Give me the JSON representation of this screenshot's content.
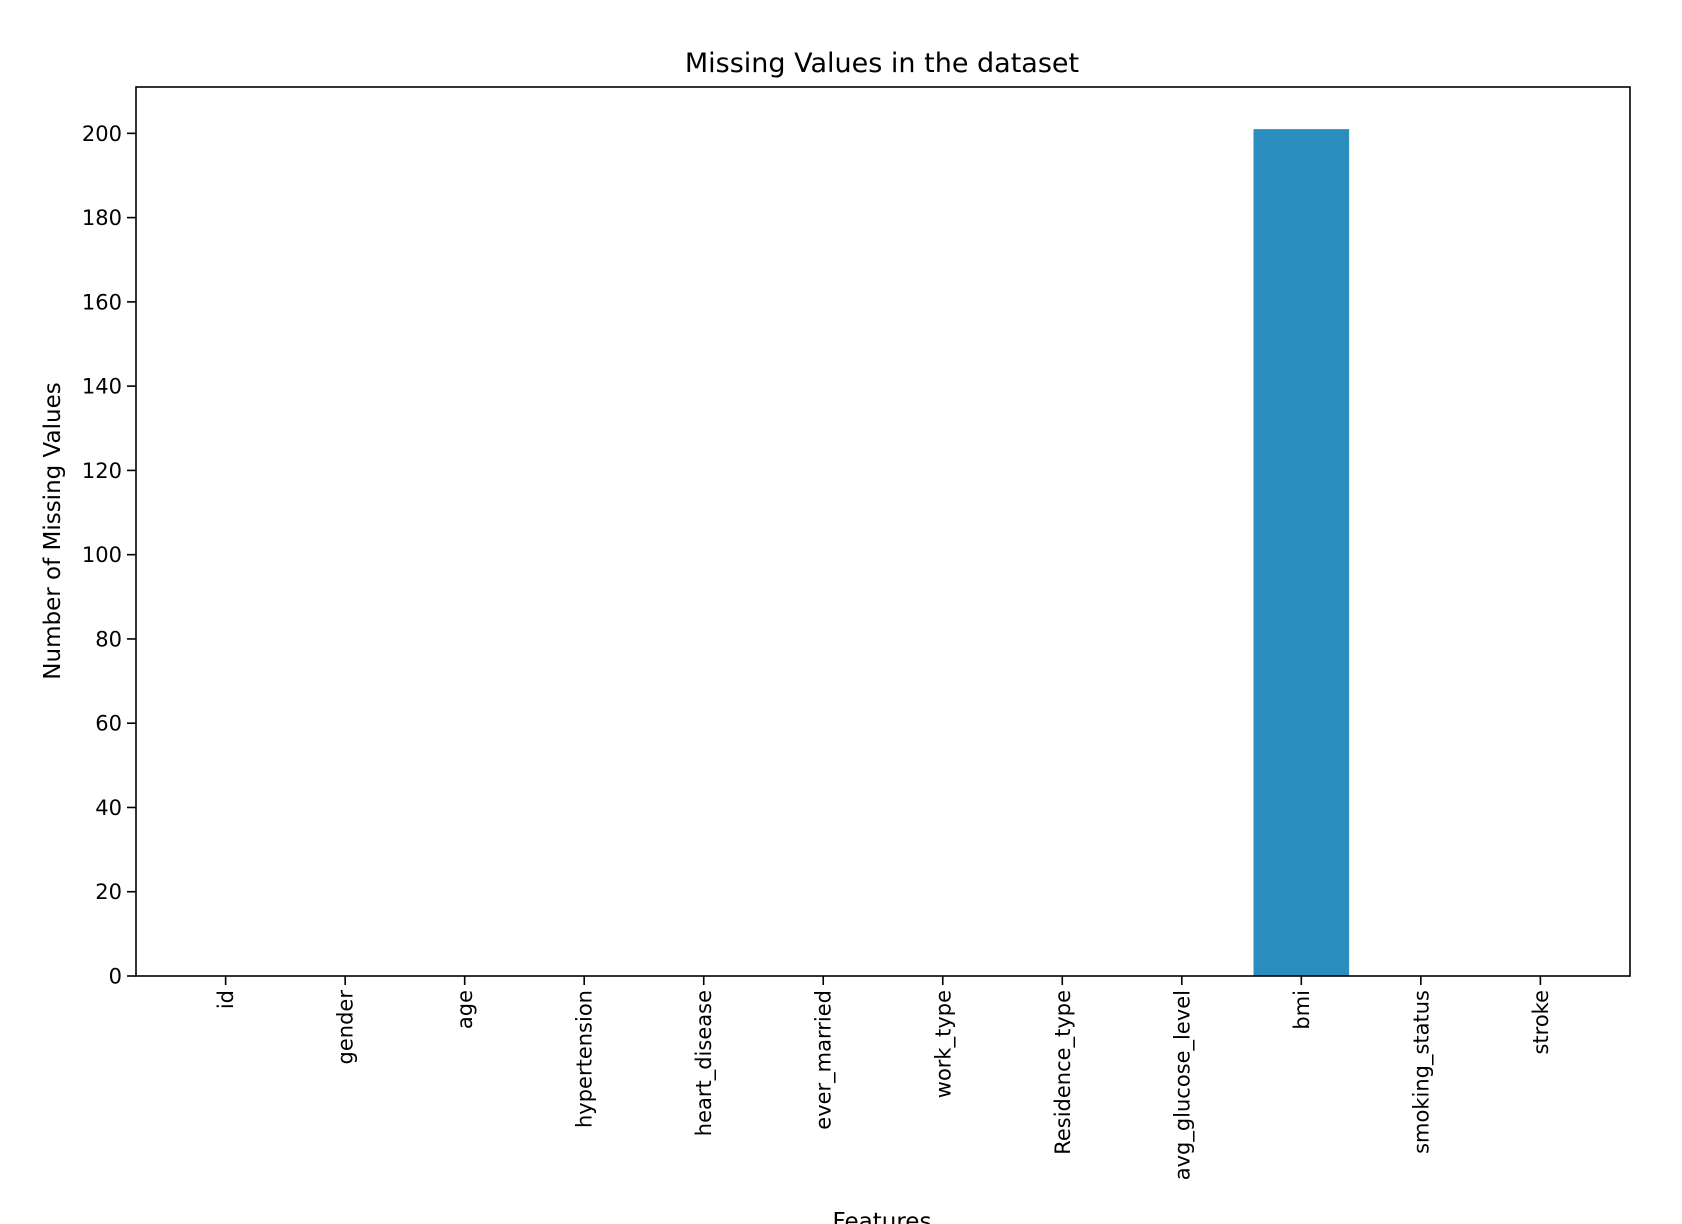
{
  "chart_data": {
    "type": "bar",
    "title": "Missing Values in the dataset",
    "xlabel": "Features",
    "ylabel": "Number of Missing Values",
    "categories": [
      "id",
      "gender",
      "age",
      "hypertension",
      "heart_disease",
      "ever_married",
      "work_type",
      "Residence_type",
      "avg_glucose_level",
      "bmi",
      "smoking_status",
      "stroke"
    ],
    "values": [
      0,
      0,
      0,
      0,
      0,
      0,
      0,
      0,
      0,
      201,
      0,
      0
    ],
    "ylim": [
      0,
      211
    ],
    "yticks": [
      0,
      20,
      40,
      60,
      80,
      100,
      120,
      140,
      160,
      180,
      200
    ],
    "ytick_labels": [
      "0",
      "20",
      "40",
      "60",
      "80",
      "100",
      "120",
      "140",
      "160",
      "180",
      "200"
    ],
    "bar_color": "#2b8cbe",
    "grid": false,
    "legend": false
  }
}
